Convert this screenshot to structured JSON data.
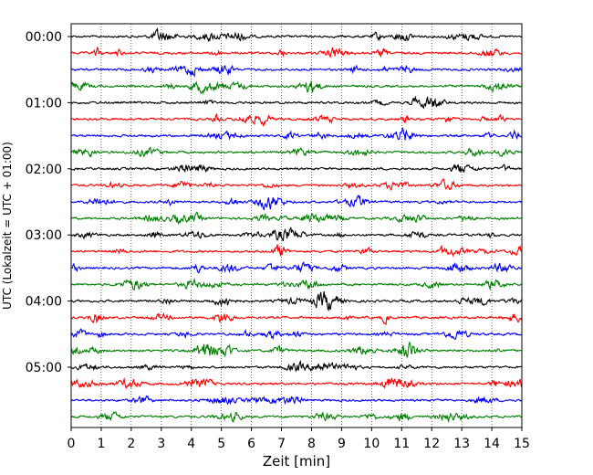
{
  "chart_data": {
    "type": "line",
    "xlabel": "Zeit  [min]",
    "ylabel": "UTC (Lokalzeit = UTC + 01:00)",
    "xlim": [
      0,
      15
    ],
    "x_ticks": [
      0,
      1,
      2,
      3,
      4,
      5,
      6,
      7,
      8,
      9,
      10,
      11,
      12,
      13,
      14,
      15
    ],
    "x_tick_labels": [
      "0",
      "1",
      "2",
      "3",
      "4",
      "5",
      "6",
      "7",
      "8",
      "9",
      "10",
      "11",
      "12",
      "13",
      "14",
      "15"
    ],
    "y_tick_labels": [
      "00:00",
      "01:00",
      "02:00",
      "03:00",
      "04:00",
      "05:00"
    ],
    "traces_per_hour": 4,
    "trace_count": 24,
    "trace_colors": [
      "#000000",
      "#ff0000",
      "#0000ff",
      "#008000"
    ],
    "grid": "vertical dotted at each minute",
    "legend": "none"
  }
}
